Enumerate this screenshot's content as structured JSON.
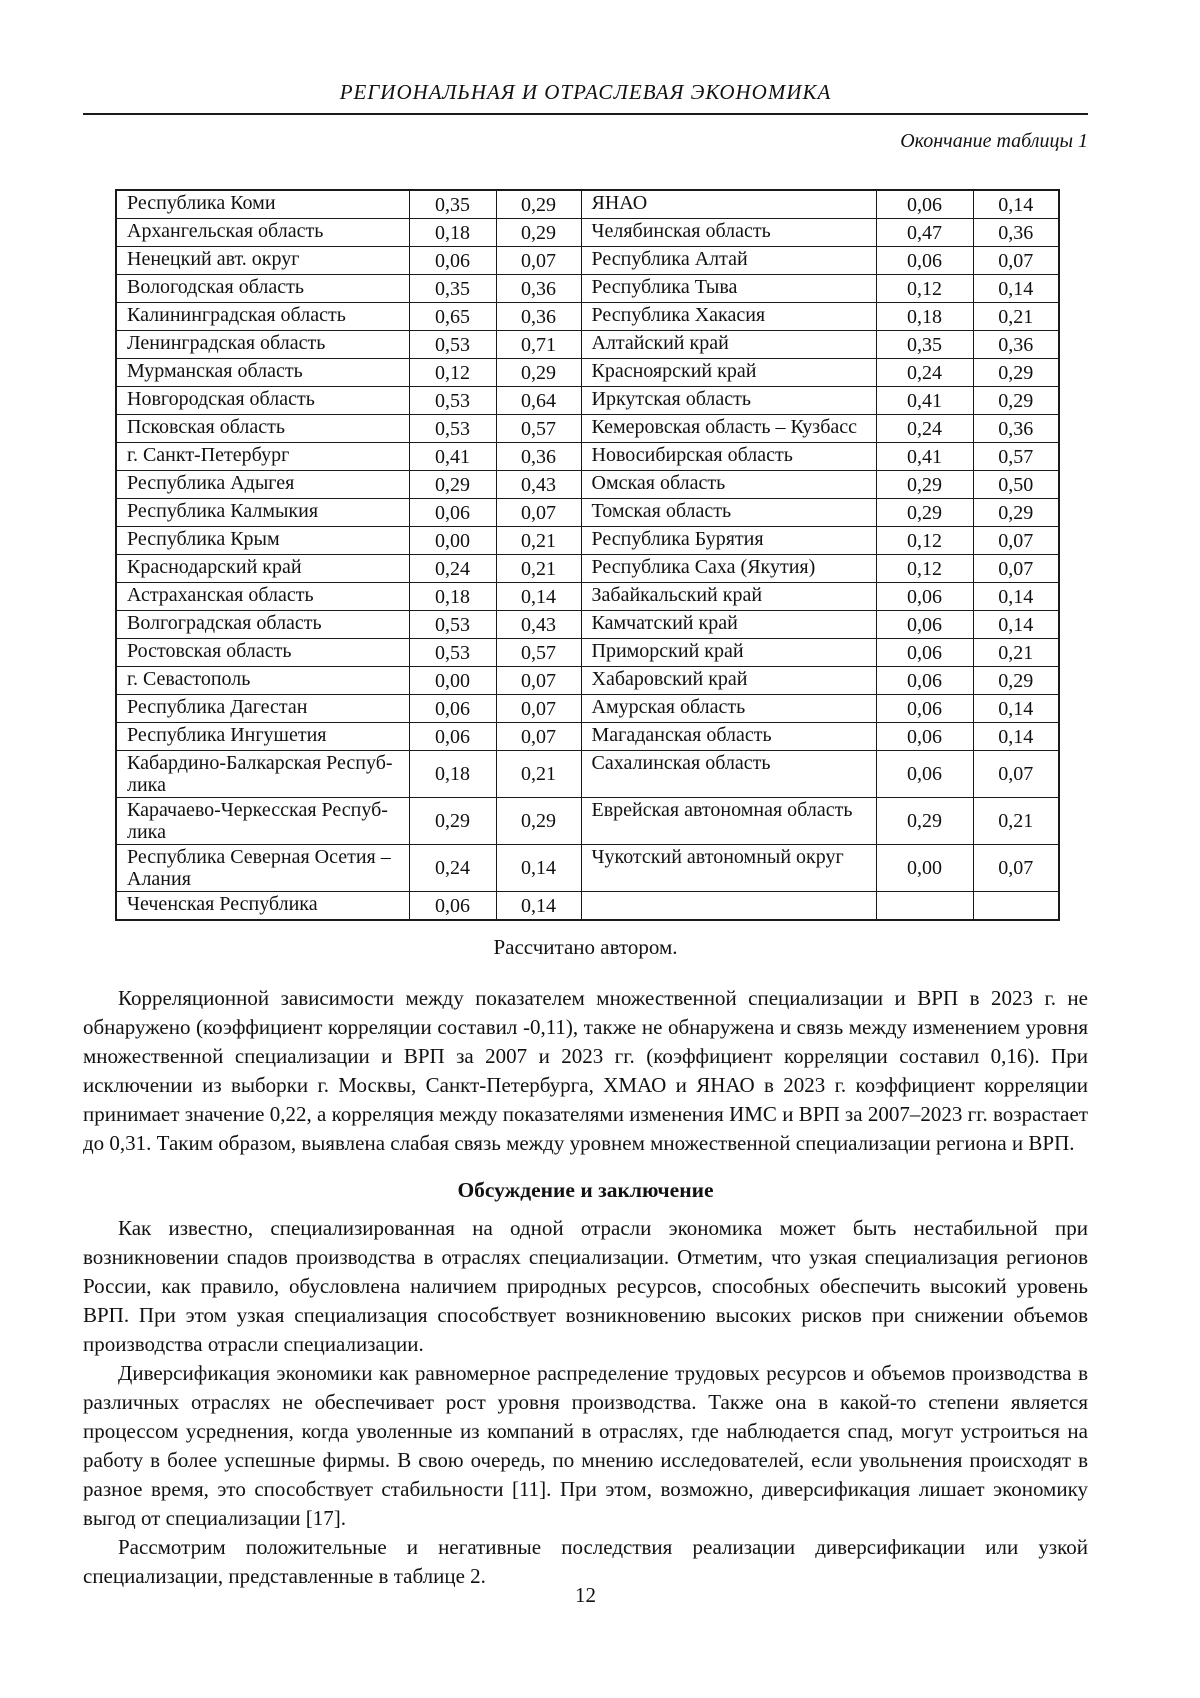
{
  "header": {
    "running_head": "РЕГИОНАЛЬНАЯ И ОТРАСЛЕВАЯ ЭКОНОМИКА",
    "continuation_note": "Окончание таблицы 1"
  },
  "table": {
    "source_note": "Рассчитано автором.",
    "rows": [
      [
        "Республика Коми",
        "0,35",
        "0,29",
        "ЯНАО",
        "0,06",
        "0,14"
      ],
      [
        "Архангельская область",
        "0,18",
        "0,29",
        "Челябинская область",
        "0,47",
        "0,36"
      ],
      [
        "Ненецкий авт. округ",
        "0,06",
        "0,07",
        "Республика Алтай",
        "0,06",
        "0,07"
      ],
      [
        "Вологодская область",
        "0,35",
        "0,36",
        "Республика Тыва",
        "0,12",
        "0,14"
      ],
      [
        "Калининградская область",
        "0,65",
        "0,36",
        "Республика Хакасия",
        "0,18",
        "0,21"
      ],
      [
        "Ленинградская область",
        "0,53",
        "0,71",
        "Алтайский край",
        "0,35",
        "0,36"
      ],
      [
        "Мурманская область",
        "0,12",
        "0,29",
        "Красноярский край",
        "0,24",
        "0,29"
      ],
      [
        "Новгородская область",
        "0,53",
        "0,64",
        "Иркутская область",
        "0,41",
        "0,29"
      ],
      [
        "Псковская область",
        "0,53",
        "0,57",
        "Кемеровская область – Кузбасс",
        "0,24",
        "0,36"
      ],
      [
        "г. Санкт-Петербург",
        "0,41",
        "0,36",
        "Новосибирская область",
        "0,41",
        "0,57"
      ],
      [
        "Республика Адыгея",
        "0,29",
        "0,43",
        "Омская область",
        "0,29",
        "0,50"
      ],
      [
        "Республика Калмыкия",
        "0,06",
        "0,07",
        "Томская область",
        "0,29",
        "0,29"
      ],
      [
        "Республика Крым",
        "0,00",
        "0,21",
        "Республика Бурятия",
        "0,12",
        "0,07"
      ],
      [
        "Краснодарский край",
        "0,24",
        "0,21",
        "Республика Саха (Якутия)",
        "0,12",
        "0,07"
      ],
      [
        "Астраханская область",
        "0,18",
        "0,14",
        "Забайкальский край",
        "0,06",
        "0,14"
      ],
      [
        "Волгоградская область",
        "0,53",
        "0,43",
        "Камчатский край",
        "0,06",
        "0,14"
      ],
      [
        "Ростовская область",
        "0,53",
        "0,57",
        "Приморский край",
        "0,06",
        "0,21"
      ],
      [
        "г. Севастополь",
        "0,00",
        "0,07",
        "Хабаровский край",
        "0,06",
        "0,29"
      ],
      [
        "Республика Дагестан",
        "0,06",
        "0,07",
        "Амурская область",
        "0,06",
        "0,14"
      ],
      [
        "Республика Ингушетия",
        "0,06",
        "0,07",
        "Магаданская область",
        "0,06",
        "0,14"
      ],
      [
        "Кабардино-Балкарская Респуб­лика",
        "0,18",
        "0,21",
        "Сахалинская область",
        "0,06",
        "0,07"
      ],
      [
        "Карачаево-Черкесская Респуб­лика",
        "0,29",
        "0,29",
        "Еврейская автономная область",
        "0,29",
        "0,21"
      ],
      [
        "Республика Северная Осетия – Алания",
        "0,24",
        "0,14",
        "Чукотский автономный округ",
        "0,00",
        "0,07"
      ],
      [
        "Чеченская Республика",
        "0,06",
        "0,14",
        "",
        "",
        ""
      ]
    ]
  },
  "body": {
    "section_heading": "Обсуждение и заключение",
    "paragraphs": [
      "Корреляционной зависимости между показателем множественной специализации и ВРП в 2023 г. не обнаружено (коэффициент корреляции составил -0,11), также не обнаружена и связь между изменением уровня множественной специализации и ВРП за 2007 и 2023 гг. (коэффици­ент корреляции составил 0,16). При исключении из выборки г. Москвы, Санкт-Петербурга, ХМАО и ЯНАО в 2023 г. коэффициент корреляции принимает значение 0,22, а корреляция между показателями изменения ИМС и ВРП за 2007–2023 гг. возрастает до 0,31. Таким обра­зом, выявлена слабая связь между уровнем множественной специализации региона и ВРП.",
      "Как известно, специализированная на одной отрасли экономика может быть нестабильной при возникновении спадов производства в отраслях специализации. Отметим, что узкая специ­ализация регионов России, как правило, обусловлена наличием природных ресурсов, способ­ных обеспечить высокий уровень ВРП. При этом узкая специализация способствует возникно­вению высоких рисков при снижении объемов производства отрасли специализации.",
      "Диверсификация экономики как равномерное распределение трудовых ресурсов и объе­мов производства в различных отраслях не обеспечивает рост уровня производства. Также она в какой-то степени является процессом усреднения, когда уволенные из компаний в отраслях, где наблюдается спад, могут устроиться на работу в более успешные фирмы. В свою очередь, по мнению исследователей, если увольнения происходят в разное время, это способствует ста­бильности [11]. При этом, возможно, диверсификация лишает экономику выгод от специализа­ции [17].",
      "Рассмотрим положительные и негативные последствия реализации диверсификации или узкой специализации, представленные в таблице 2."
    ]
  },
  "footer": {
    "page_number": "12"
  },
  "colors": {
    "background": "#ffffff",
    "text": "#111111",
    "table_border": "#1a1a1a"
  }
}
